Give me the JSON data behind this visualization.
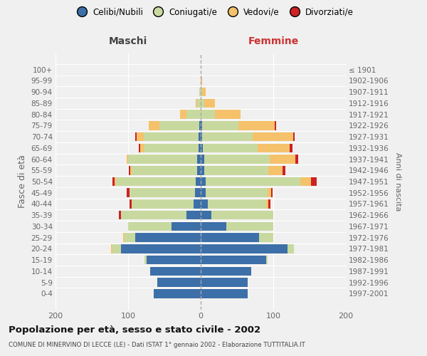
{
  "age_groups": [
    "0-4",
    "5-9",
    "10-14",
    "15-19",
    "20-24",
    "25-29",
    "30-34",
    "35-39",
    "40-44",
    "45-49",
    "50-54",
    "55-59",
    "60-64",
    "65-69",
    "70-74",
    "75-79",
    "80-84",
    "85-89",
    "90-94",
    "95-99",
    "100+"
  ],
  "birth_years": [
    "1997-2001",
    "1992-1996",
    "1987-1991",
    "1982-1986",
    "1977-1981",
    "1972-1976",
    "1967-1971",
    "1962-1966",
    "1957-1961",
    "1952-1956",
    "1947-1951",
    "1942-1946",
    "1937-1941",
    "1932-1936",
    "1927-1931",
    "1922-1926",
    "1917-1921",
    "1912-1916",
    "1907-1911",
    "1902-1906",
    "≤ 1901"
  ],
  "males": {
    "celibi": [
      65,
      60,
      70,
      75,
      110,
      90,
      40,
      20,
      10,
      8,
      7,
      5,
      5,
      3,
      3,
      2,
      0,
      0,
      0,
      0,
      0
    ],
    "coniugati": [
      0,
      0,
      0,
      2,
      12,
      15,
      60,
      90,
      85,
      90,
      110,
      90,
      95,
      75,
      75,
      55,
      20,
      5,
      2,
      0,
      0
    ],
    "vedovi": [
      0,
      0,
      0,
      0,
      2,
      2,
      0,
      0,
      0,
      0,
      2,
      2,
      2,
      5,
      10,
      15,
      8,
      2,
      0,
      0,
      0
    ],
    "divorziati": [
      0,
      0,
      0,
      0,
      0,
      0,
      0,
      3,
      3,
      4,
      3,
      2,
      0,
      2,
      2,
      0,
      0,
      0,
      0,
      0,
      0
    ]
  },
  "females": {
    "nubili": [
      65,
      65,
      70,
      90,
      120,
      80,
      35,
      15,
      10,
      7,
      7,
      5,
      5,
      3,
      2,
      2,
      0,
      0,
      0,
      0,
      0
    ],
    "coniugate": [
      0,
      0,
      0,
      2,
      8,
      20,
      65,
      85,
      80,
      85,
      130,
      88,
      90,
      75,
      70,
      50,
      20,
      5,
      2,
      0,
      0
    ],
    "vedove": [
      0,
      0,
      0,
      0,
      0,
      0,
      0,
      0,
      3,
      5,
      15,
      20,
      35,
      45,
      55,
      50,
      35,
      15,
      5,
      2,
      0
    ],
    "divorziate": [
      0,
      0,
      0,
      0,
      0,
      0,
      0,
      0,
      3,
      2,
      8,
      4,
      4,
      3,
      2,
      2,
      0,
      0,
      0,
      0,
      0
    ]
  },
  "colors": {
    "celibi_nubili": "#3d6fa8",
    "coniugati": "#c8d9a0",
    "vedovi": "#f5c26b",
    "divorziati": "#cc2222"
  },
  "xlim": [
    -200,
    200
  ],
  "xticks": [
    -200,
    -100,
    0,
    100,
    200
  ],
  "xticklabels": [
    "200",
    "100",
    "0",
    "100",
    "200"
  ],
  "title": "Popolazione per età, sesso e stato civile - 2002",
  "subtitle": "COMUNE DI MINERVINO DI LECCE (LE) - Dati ISTAT 1° gennaio 2002 - Elaborazione TUTTITALIA.IT",
  "ylabel_left": "Fasce di età",
  "ylabel_right": "Anni di nascita",
  "label_maschi": "Maschi",
  "label_femmine": "Femmine",
  "legend_labels": [
    "Celibi/Nubili",
    "Coniugati/e",
    "Vedovi/e",
    "Divorziati/e"
  ],
  "bg_color": "#f0f0f0"
}
